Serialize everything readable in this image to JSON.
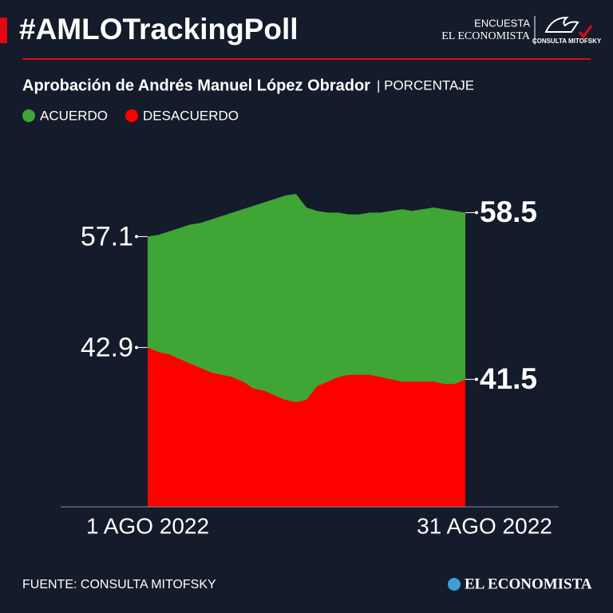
{
  "header": {
    "hashtag": "#AMLOTrackingPoll",
    "poll_label": "ENCUESTA",
    "publisher": "EL ECONOMISTA",
    "pollster_logo": "CONSULTA MITOFSKY"
  },
  "chart_data": {
    "type": "area",
    "title": "Aprobación de Andrés Manuel López Obrador",
    "unit": "| PORCENTAJE",
    "categories": [
      "1 AGO 2022",
      null,
      null,
      null,
      null,
      null,
      null,
      null,
      null,
      null,
      null,
      null,
      null,
      null,
      null,
      null,
      null,
      null,
      null,
      null,
      null,
      null,
      null,
      null,
      null,
      null,
      null,
      null,
      null,
      null,
      "31 AGO 2022"
    ],
    "series": [
      {
        "name": "ACUERDO",
        "color": "#3fa535",
        "values": [
          57.1,
          57.2,
          57.4,
          57.6,
          57.8,
          57.9,
          58.1,
          58.3,
          58.5,
          58.7,
          58.9,
          59.1,
          59.3,
          59.5,
          59.6,
          58.8,
          58.6,
          58.5,
          58.5,
          58.4,
          58.4,
          58.5,
          58.5,
          58.6,
          58.7,
          58.6,
          58.7,
          58.8,
          58.7,
          58.6,
          58.5
        ]
      },
      {
        "name": "DESACUERDO",
        "color": "#ff0000",
        "axis": "y2",
        "values": [
          42.9,
          42.7,
          42.6,
          42.4,
          42.2,
          42.0,
          41.8,
          41.7,
          41.6,
          41.4,
          41.1,
          41.0,
          40.8,
          40.6,
          40.5,
          40.6,
          41.2,
          41.4,
          41.6,
          41.7,
          41.7,
          41.7,
          41.6,
          41.5,
          41.4,
          41.4,
          41.4,
          41.4,
          41.3,
          41.3,
          41.5
        ]
      }
    ],
    "ylim": [
      41.3,
      60.2
    ],
    "y2lim": [
      35.9,
      50.1
    ]
  },
  "footer": {
    "source": "FUENTE: CONSULTA MITOFSKY",
    "logo": "EL ECONOMISTA"
  }
}
